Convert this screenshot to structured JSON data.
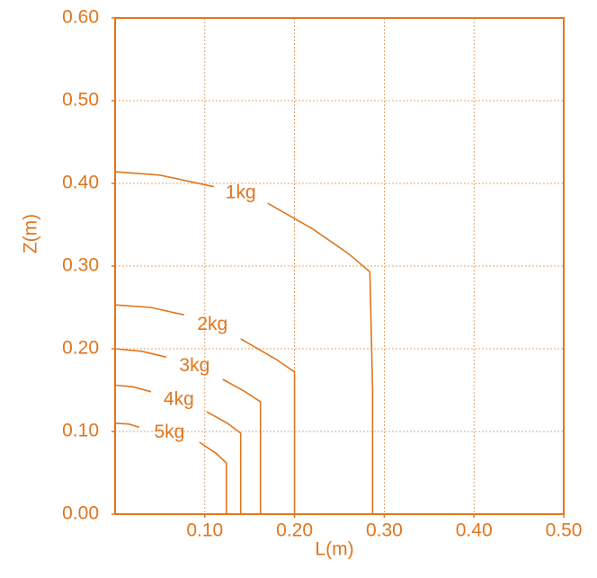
{
  "chart_data": {
    "type": "line",
    "xlabel": "L(m)",
    "ylabel": "Z(m)",
    "xlim": [
      0,
      0.5
    ],
    "ylim": [
      0,
      0.6
    ],
    "xticks": [
      {
        "value": 0.1,
        "label": "0.10"
      },
      {
        "value": 0.2,
        "label": "0.20"
      },
      {
        "value": 0.3,
        "label": "0.30"
      },
      {
        "value": 0.4,
        "label": "0.40"
      },
      {
        "value": 0.5,
        "label": "0.50"
      }
    ],
    "yticks": [
      {
        "value": 0,
        "label": "0.00"
      },
      {
        "value": 0.1,
        "label": "0.10"
      },
      {
        "value": 0.2,
        "label": "0.20"
      },
      {
        "value": 0.3,
        "label": "0.30"
      },
      {
        "value": 0.4,
        "label": "0.40"
      },
      {
        "value": 0.5,
        "label": "0.50"
      },
      {
        "value": 0.6,
        "label": "0.60"
      }
    ],
    "grid": true,
    "color": "#e0761e",
    "series": [
      {
        "name": "1kg",
        "x": [
          0,
          0.05,
          0.11,
          null,
          0.17,
          0.22,
          0.26,
          0.284,
          0.287,
          0.287
        ],
        "values": [
          0.414,
          0.41,
          0.396,
          null,
          0.376,
          0.345,
          0.315,
          0.293,
          0.15,
          0
        ]
      },
      {
        "name": "2kg",
        "x": [
          0,
          0.04,
          0.077,
          null,
          0.14,
          0.18,
          0.2,
          0.2
        ],
        "values": [
          0.253,
          0.25,
          0.241,
          null,
          0.212,
          0.187,
          0.172,
          0
        ]
      },
      {
        "name": "3kg",
        "x": [
          0,
          0.03,
          0.057,
          null,
          0.12,
          0.145,
          0.162,
          0.162
        ],
        "values": [
          0.2,
          0.197,
          0.19,
          null,
          0.163,
          0.148,
          0.136,
          0
        ]
      },
      {
        "name": "4kg",
        "x": [
          0,
          0.02,
          0.04,
          null,
          0.102,
          0.125,
          0.14,
          0.14
        ],
        "values": [
          0.156,
          0.154,
          0.148,
          null,
          0.124,
          0.11,
          0.098,
          0
        ]
      },
      {
        "name": "5kg",
        "x": [
          0,
          0.015,
          0.027,
          null,
          0.094,
          0.112,
          0.124,
          0.124
        ],
        "values": [
          0.11,
          0.109,
          0.105,
          null,
          0.087,
          0.074,
          0.062,
          0
        ]
      }
    ]
  }
}
